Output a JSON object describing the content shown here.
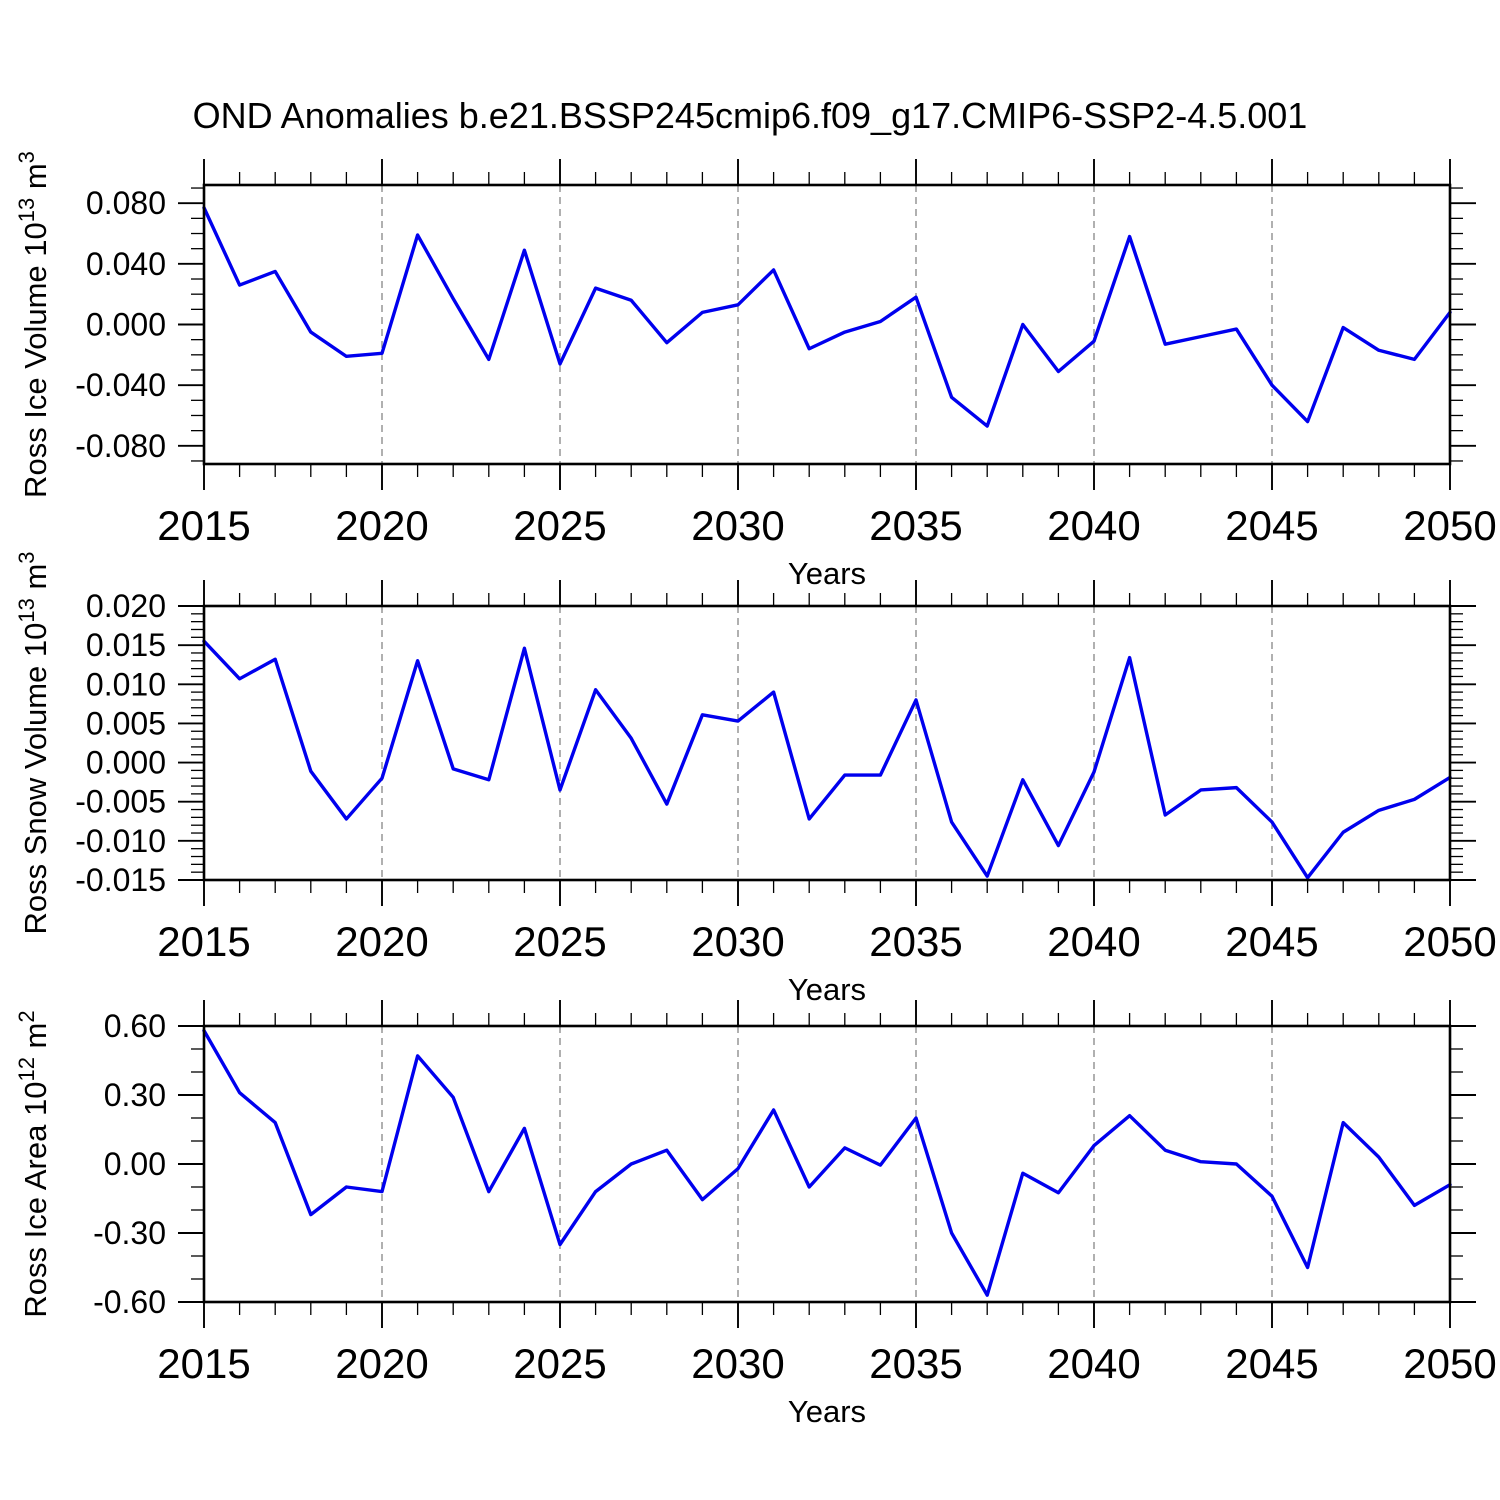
{
  "header": {
    "title": "OND Anomalies b.e21.BSSP245cmip6.f09_g17.CMIP6-SSP2-4.5.001"
  },
  "colors": {
    "line": "#0000ee",
    "axis": "#000000",
    "grid": "#858585",
    "background": "#ffffff",
    "text": "#000000"
  },
  "x_major_ticks": [
    2015,
    2020,
    2025,
    2030,
    2035,
    2040,
    2045,
    2050
  ],
  "xtick_labels": [
    "2015",
    "2020",
    "2025",
    "2030",
    "2035",
    "2040",
    "2045",
    "2050"
  ],
  "x_grid": [
    2020,
    2025,
    2030,
    2035,
    2040,
    2045
  ],
  "chart_data": [
    {
      "type": "line",
      "name": "ross-ice-volume",
      "ylabel_text": "Ross Ice Volume 10^13 m^3",
      "ylabel_segments": [
        {
          "t": "Ross Ice Volume 10"
        },
        {
          "t": "13",
          "sup": true
        },
        {
          "t": " m"
        },
        {
          "t": "3",
          "sup": true
        }
      ],
      "xlabel": "Years",
      "xlim": [
        2015,
        2050
      ],
      "ylim": [
        -0.092,
        0.092
      ],
      "yticks": [
        0.08,
        0.04,
        0.0,
        -0.04,
        -0.08
      ],
      "ytick_labels": [
        "0.080",
        "0.040",
        "0.000",
        "-0.040",
        "-0.080"
      ],
      "y_minor_step": 0.01,
      "grid": "dashed-vertical-every-5-years",
      "x": [
        2015,
        2016,
        2017,
        2018,
        2019,
        2020,
        2021,
        2022,
        2023,
        2024,
        2025,
        2026,
        2027,
        2028,
        2029,
        2030,
        2031,
        2032,
        2033,
        2034,
        2035,
        2036,
        2037,
        2038,
        2039,
        2040,
        2041,
        2042,
        2043,
        2044,
        2045,
        2046,
        2047,
        2048,
        2049,
        2050
      ],
      "values": [
        0.077,
        0.026,
        0.035,
        -0.005,
        -0.021,
        -0.019,
        0.059,
        0.017,
        -0.023,
        0.049,
        -0.026,
        0.024,
        0.016,
        -0.012,
        0.008,
        0.013,
        0.036,
        -0.016,
        -0.005,
        0.002,
        0.018,
        -0.048,
        -0.067,
        0.0,
        -0.031,
        -0.011,
        0.058,
        -0.013,
        -0.008,
        -0.003,
        -0.04,
        -0.064,
        -0.002,
        -0.017,
        -0.023,
        0.008
      ]
    },
    {
      "type": "line",
      "name": "ross-snow-volume",
      "ylabel_text": "Ross Snow Volume 10^13 m^3",
      "ylabel_segments": [
        {
          "t": "Ross Snow Volume 10"
        },
        {
          "t": "13",
          "sup": true
        },
        {
          "t": " m"
        },
        {
          "t": "3",
          "sup": true
        }
      ],
      "xlabel": "Years",
      "xlim": [
        2015,
        2050
      ],
      "ylim": [
        -0.015,
        0.02
      ],
      "yticks": [
        0.02,
        0.015,
        0.01,
        0.005,
        0.0,
        -0.005,
        -0.01,
        -0.015
      ],
      "ytick_labels": [
        "0.020",
        "0.015",
        "0.010",
        "0.005",
        "0.000",
        "-0.005",
        "-0.010",
        "-0.015"
      ],
      "y_minor_step": 0.001,
      "grid": "dashed-vertical-every-5-years",
      "x": [
        2015,
        2016,
        2017,
        2018,
        2019,
        2020,
        2021,
        2022,
        2023,
        2024,
        2025,
        2026,
        2027,
        2028,
        2029,
        2030,
        2031,
        2032,
        2033,
        2034,
        2035,
        2036,
        2037,
        2038,
        2039,
        2040,
        2041,
        2042,
        2043,
        2044,
        2045,
        2046,
        2047,
        2048,
        2049,
        2050
      ],
      "values": [
        0.0155,
        0.0107,
        0.0132,
        -0.0011,
        -0.0072,
        -0.002,
        0.013,
        -0.0008,
        -0.0022,
        0.0146,
        -0.0035,
        0.0093,
        0.0031,
        -0.0053,
        0.0061,
        0.0053,
        0.009,
        -0.0072,
        -0.0016,
        -0.0016,
        0.008,
        -0.0076,
        -0.0145,
        -0.0022,
        -0.0106,
        -0.0012,
        0.0134,
        -0.0067,
        -0.0035,
        -0.0032,
        -0.0076,
        -0.0147,
        -0.0089,
        -0.0061,
        -0.0047,
        -0.0019
      ]
    },
    {
      "type": "line",
      "name": "ross-ice-area",
      "ylabel_text": "Ross Ice Area 10^12 m^2",
      "ylabel_segments": [
        {
          "t": "Ross Ice Area 10"
        },
        {
          "t": "12",
          "sup": true
        },
        {
          "t": " m"
        },
        {
          "t": "2",
          "sup": true
        }
      ],
      "xlabel": "Years",
      "xlim": [
        2015,
        2050
      ],
      "ylim": [
        -0.6,
        0.6
      ],
      "yticks": [
        0.6,
        0.3,
        0.0,
        -0.3,
        -0.6
      ],
      "ytick_labels": [
        "0.60",
        "0.30",
        "0.00",
        "-0.30",
        "-0.60"
      ],
      "y_minor_step": 0.1,
      "grid": "dashed-vertical-every-5-years",
      "x": [
        2015,
        2016,
        2017,
        2018,
        2019,
        2020,
        2021,
        2022,
        2023,
        2024,
        2025,
        2026,
        2027,
        2028,
        2029,
        2030,
        2031,
        2032,
        2033,
        2034,
        2035,
        2036,
        2037,
        2038,
        2039,
        2040,
        2041,
        2042,
        2043,
        2044,
        2045,
        2046,
        2047,
        2048,
        2049,
        2050
      ],
      "values": [
        0.58,
        0.31,
        0.18,
        -0.22,
        -0.1,
        -0.12,
        0.47,
        0.29,
        -0.12,
        0.155,
        -0.35,
        -0.12,
        0.0,
        0.06,
        -0.155,
        -0.02,
        0.235,
        -0.1,
        0.07,
        -0.005,
        0.2,
        -0.3,
        -0.57,
        -0.04,
        -0.125,
        0.08,
        0.21,
        0.06,
        0.01,
        0.0,
        -0.14,
        -0.45,
        0.18,
        0.03,
        -0.18,
        -0.09
      ]
    }
  ]
}
